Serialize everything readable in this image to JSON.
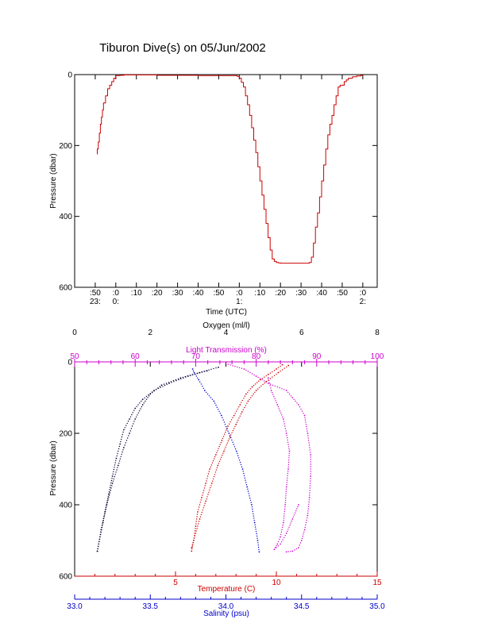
{
  "figure": {
    "title": "Tiburon Dive(s) on 05/Jun/2002"
  },
  "chart_data": [
    {
      "type": "line",
      "title": "Tiburon Dive(s) on 05/Jun/2002",
      "xlabel": "Time (UTC)",
      "ylabel": "Pressure (dbar)",
      "x_unit": "minutes since 23:50 UTC",
      "x_ticks": [
        {
          "v": 0,
          "top": ":50",
          "bot": "23:"
        },
        {
          "v": 10,
          "top": ":0",
          "bot": "0:"
        },
        {
          "v": 20,
          "top": ":10",
          "bot": ""
        },
        {
          "v": 30,
          "top": ":20",
          "bot": ""
        },
        {
          "v": 40,
          "top": ":30",
          "bot": ""
        },
        {
          "v": 50,
          "top": ":40",
          "bot": ""
        },
        {
          "v": 60,
          "top": ":50",
          "bot": ""
        },
        {
          "v": 70,
          "top": ":0",
          "bot": "1:"
        },
        {
          "v": 80,
          "top": ":10",
          "bot": ""
        },
        {
          "v": 90,
          "top": ":20",
          "bot": ""
        },
        {
          "v": 100,
          "top": ":30",
          "bot": ""
        },
        {
          "v": 110,
          "top": ":40",
          "bot": ""
        },
        {
          "v": 120,
          "top": ":50",
          "bot": ""
        },
        {
          "v": 130,
          "top": ":0",
          "bot": "2:"
        }
      ],
      "xlim": [
        -10,
        137
      ],
      "ylim": [
        600,
        0
      ],
      "y_ticks": [
        0,
        200,
        400,
        600
      ],
      "color": "#cc0000",
      "series": [
        {
          "x": [
            1,
            1,
            1.5,
            2,
            2.5,
            3,
            3.5,
            4,
            5,
            6,
            7,
            8,
            9,
            10,
            12,
            14,
            16,
            18,
            20,
            25,
            30,
            40,
            50,
            60,
            65,
            68,
            69,
            70,
            71,
            72,
            73,
            74,
            75,
            76,
            77,
            78,
            79,
            80,
            81,
            82,
            83,
            84,
            85,
            86,
            87,
            88,
            89,
            90,
            92,
            95,
            100,
            102,
            104,
            105,
            106,
            107,
            108,
            109,
            110,
            111,
            112,
            113,
            114,
            115,
            116,
            117,
            118,
            119,
            120,
            121,
            122,
            123,
            124,
            125,
            127,
            129,
            130
          ],
          "y": [
            225,
            210,
            190,
            165,
            140,
            120,
            100,
            80,
            60,
            40,
            30,
            20,
            10,
            3,
            2,
            1,
            1,
            1,
            1,
            1,
            2,
            2,
            3,
            3,
            3,
            3,
            5,
            10,
            22,
            35,
            60,
            85,
            115,
            150,
            185,
            220,
            260,
            300,
            340,
            380,
            420,
            460,
            495,
            520,
            527,
            530,
            531,
            532,
            532,
            532,
            532,
            532,
            530,
            515,
            475,
            430,
            390,
            345,
            300,
            255,
            210,
            170,
            140,
            115,
            85,
            60,
            35,
            30,
            30,
            20,
            15,
            10,
            10,
            6,
            4,
            2,
            1
          ]
        }
      ]
    },
    {
      "type": "scatter",
      "ylabel": "Pressure (dbar)",
      "ylim": [
        600,
        0
      ],
      "y_ticks": [
        0,
        200,
        400,
        600
      ],
      "axes": {
        "oxygen": {
          "label": "Oxygen (ml/l)",
          "range": [
            0,
            8
          ],
          "ticks": [
            0,
            2,
            4,
            6,
            8
          ],
          "color": "#000000"
        },
        "light_transmission": {
          "label": "Light Transmission (%)",
          "range": [
            50,
            100
          ],
          "ticks": [
            50,
            60,
            70,
            80,
            90,
            100
          ],
          "color": "#cc00cc"
        },
        "temperature": {
          "label": "Temperature (C)",
          "range": [
            0,
            15
          ],
          "ticks": [
            5,
            10,
            15
          ],
          "color": "#cc0000"
        },
        "salinity": {
          "label": "Salinity (psu)",
          "range": [
            33.0,
            35.0
          ],
          "ticks": [
            "33.0",
            "33.5",
            "34.0",
            "34.5",
            "35.0"
          ],
          "color": "#0000cc"
        }
      },
      "series": [
        {
          "name": "Oxygen",
          "axis": "oxygen",
          "color": "#000033",
          "x": [
            0.6,
            0.7,
            0.8,
            0.9,
            1.0,
            1.1,
            1.2,
            1.3,
            1.45,
            1.6,
            1.8,
            2.1,
            2.5,
            3.0,
            3.5
          ],
          "y": [
            530,
            470,
            420,
            370,
            320,
            270,
            230,
            190,
            160,
            130,
            105,
            80,
            60,
            40,
            25
          ]
        },
        {
          "name": "Oxygen",
          "axis": "oxygen",
          "color": "#000033",
          "x": [
            0.6,
            0.75,
            0.85,
            1.0,
            1.15,
            1.3,
            1.45,
            1.6,
            1.8,
            2.0,
            2.3,
            2.8,
            3.3,
            3.8
          ],
          "y": [
            530,
            450,
            400,
            340,
            290,
            240,
            200,
            160,
            120,
            90,
            65,
            45,
            30,
            15
          ]
        },
        {
          "name": "Light Transmission",
          "axis": "light_transmission",
          "color": "#cc00cc",
          "x": [
            82,
            82.5,
            83.5,
            84.5,
            85,
            85.5,
            85.3,
            85,
            84.8,
            84.5,
            84,
            83.5,
            83,
            84,
            85,
            86,
            87
          ],
          "y": [
            45,
            80,
            120,
            160,
            200,
            250,
            300,
            350,
            400,
            450,
            490,
            510,
            525,
            510,
            480,
            440,
            400
          ]
        },
        {
          "name": "Light Transmission",
          "axis": "light_transmission",
          "color": "#cc00cc",
          "x": [
            75,
            78,
            80,
            82,
            85,
            86,
            87,
            88,
            88.5,
            89,
            89,
            88.8,
            88.5,
            88,
            87.5,
            87,
            86,
            85
          ],
          "y": [
            5,
            20,
            40,
            60,
            80,
            100,
            120,
            150,
            200,
            260,
            320,
            380,
            430,
            470,
            500,
            520,
            530,
            532
          ]
        },
        {
          "name": "Temperature",
          "axis": "temperature",
          "color": "#cc0000",
          "x": [
            5.8,
            5.9,
            6.0,
            6.1,
            6.3,
            6.5,
            6.7,
            7.0,
            7.3,
            7.6,
            7.9,
            8.2,
            8.5,
            8.8,
            9.2,
            9.6,
            10.0,
            10.3
          ],
          "y": [
            530,
            500,
            460,
            420,
            380,
            340,
            300,
            260,
            220,
            180,
            150,
            120,
            90,
            70,
            50,
            35,
            20,
            8
          ]
        },
        {
          "name": "Temperature",
          "axis": "temperature",
          "color": "#cc0000",
          "x": [
            5.8,
            6.2,
            6.5,
            6.8,
            7.1,
            7.4,
            7.7,
            8.0,
            8.3,
            8.6,
            9.0,
            9.5,
            10.1,
            10.6
          ],
          "y": [
            520,
            440,
            390,
            340,
            290,
            250,
            210,
            175,
            140,
            110,
            80,
            55,
            30,
            10
          ]
        },
        {
          "name": "Salinity",
          "axis": "salinity",
          "color": "#0000cc",
          "x": [
            34.22,
            34.21,
            34.19,
            34.17,
            34.14,
            34.11,
            34.07,
            34.02,
            33.97,
            33.92,
            33.86,
            33.82,
            33.79,
            33.78
          ],
          "y": [
            532,
            500,
            450,
            400,
            350,
            300,
            250,
            200,
            150,
            110,
            80,
            50,
            30,
            20
          ]
        }
      ]
    }
  ]
}
